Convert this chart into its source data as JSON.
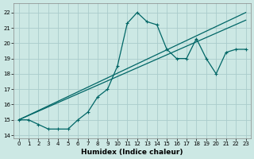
{
  "xlabel": "Humidex (Indice chaleur)",
  "bg_color": "#cce8e4",
  "grid_color": "#aacccc",
  "line_color": "#006666",
  "xlim": [
    -0.5,
    23.5
  ],
  "ylim": [
    13.8,
    22.6
  ],
  "xticks": [
    0,
    1,
    2,
    3,
    4,
    5,
    6,
    7,
    8,
    9,
    10,
    11,
    12,
    13,
    14,
    15,
    16,
    17,
    18,
    19,
    20,
    21,
    22,
    23
  ],
  "yticks": [
    14,
    15,
    16,
    17,
    18,
    19,
    20,
    21,
    22
  ],
  "line1_x": [
    0,
    1,
    2,
    3,
    4,
    5,
    6,
    7,
    8,
    9,
    10,
    11,
    12,
    13,
    14,
    15,
    16,
    17,
    18,
    19,
    20,
    21,
    22,
    23
  ],
  "line1_y": [
    15.0,
    15.0,
    14.7,
    14.4,
    14.4,
    14.4,
    15.0,
    15.5,
    16.5,
    17.0,
    18.5,
    21.3,
    22.0,
    21.4,
    21.2,
    19.6,
    19.0,
    19.0,
    20.3,
    19.0,
    18.0,
    19.4,
    19.6,
    19.6
  ],
  "line2_x": [
    0,
    23
  ],
  "line2_y": [
    15.0,
    22.0
  ],
  "line3_x": [
    0,
    23
  ],
  "line3_y": [
    15.0,
    21.5
  ],
  "xlabel_fontsize": 6.5,
  "tick_fontsize": 5
}
